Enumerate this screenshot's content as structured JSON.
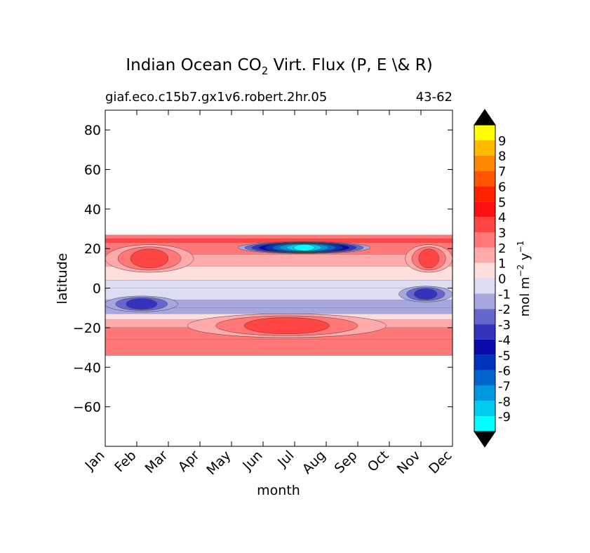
{
  "chart_data": {
    "type": "contour",
    "title_main": "Indian Ocean CO",
    "title_sub": "2",
    "title_rest": " Virt. Flux (P, E \\& R)",
    "subtitle_left": "giaf.eco.c15b7.gx1v6.robert.2hr.05",
    "subtitle_right": "43-62",
    "xlabel": "month",
    "ylabel": "latitude",
    "x_categories": [
      "Jan",
      "Feb",
      "Mar",
      "Apr",
      "May",
      "Jun",
      "Jul",
      "Aug",
      "Sep",
      "Oct",
      "Nov",
      "Dec"
    ],
    "x_range": [
      1,
      12
    ],
    "ylim": [
      -80,
      90
    ],
    "yticks": [
      80,
      60,
      40,
      20,
      0,
      -20,
      -40,
      -60
    ],
    "ytick_labels": [
      "80",
      "60",
      "40",
      "20",
      "0",
      "−20",
      "−40",
      "−60"
    ],
    "data_extent": {
      "lat_min": -34,
      "lat_max": 27
    },
    "latitude_profile": [
      {
        "lat": 27,
        "value": 2.5
      },
      {
        "lat": 25,
        "value": 3.5
      },
      {
        "lat": 23,
        "value": 2.5
      },
      {
        "lat": 17,
        "value": 1.5
      },
      {
        "lat": 11,
        "value": 0.5
      },
      {
        "lat": 4,
        "value": -0.5
      },
      {
        "lat": 0,
        "value": -1
      },
      {
        "lat": -6,
        "value": -2
      },
      {
        "lat": -10,
        "value": -1.5
      },
      {
        "lat": -13,
        "value": 0
      },
      {
        "lat": -16,
        "value": 1.5
      },
      {
        "lat": -20,
        "value": 2.5
      },
      {
        "lat": -26,
        "value": 2
      },
      {
        "lat": -34,
        "value": 1
      }
    ],
    "features": [
      {
        "name": "negative core",
        "month_start": 5.2,
        "month_end": 9.4,
        "lat_center": 20.5,
        "lat_half_width": 3,
        "min_value": -9
      },
      {
        "name": "southern positive max",
        "month_start": 3.6,
        "month_end": 9.9,
        "lat_center": -19,
        "lat_half_width": 6,
        "max_value": 3
      },
      {
        "name": "northwest positive lobe",
        "month_start": 1,
        "month_end": 3.8,
        "lat_center": 15,
        "lat_half_width": 7,
        "max_value": 3
      },
      {
        "name": "northeast positive lobe",
        "month_start": 10.5,
        "month_end": 12,
        "lat_center": 15,
        "lat_half_width": 7,
        "max_value": 3
      },
      {
        "name": "southwest negative band",
        "month_start": 1,
        "month_end": 3.3,
        "lat_center": -8,
        "lat_half_width": 4,
        "min_value": -3
      },
      {
        "name": "southeast negative band",
        "month_start": 10.3,
        "month_end": 12,
        "lat_center": -3,
        "lat_half_width": 4,
        "min_value": -3
      }
    ],
    "colorbar": {
      "label_main": "mol m",
      "label_sup1": "−2",
      "label_mid": "  y",
      "label_sup2": "−1",
      "extend": "both",
      "levels": [
        -10,
        -9,
        -8,
        -7,
        -6,
        -5,
        -4,
        -3,
        -2,
        -1,
        0,
        1,
        2,
        3,
        4,
        5,
        6,
        7,
        8,
        9,
        10
      ],
      "tick_labels": [
        "-9",
        "-8",
        "-7",
        "-6",
        "-5",
        "-4",
        "-3",
        "-2",
        "-1",
        "0",
        "1",
        "2",
        "3",
        "4",
        "5",
        "6",
        "7",
        "8",
        "9"
      ],
      "colors": [
        "#00ffff",
        "#00ccee",
        "#0099dd",
        "#0066cc",
        "#0033bb",
        "#0a0aaa",
        "#3333bb",
        "#6666cc",
        "#a6a6e0",
        "#dcdcf2",
        "#ffdede",
        "#ffaaaa",
        "#ff7777",
        "#ff4444",
        "#ff1111",
        "#ff2200",
        "#ff5500",
        "#ff8800",
        "#ffbb00",
        "#ffff00"
      ],
      "extend_colors": [
        "#000000",
        "#000000"
      ]
    }
  }
}
